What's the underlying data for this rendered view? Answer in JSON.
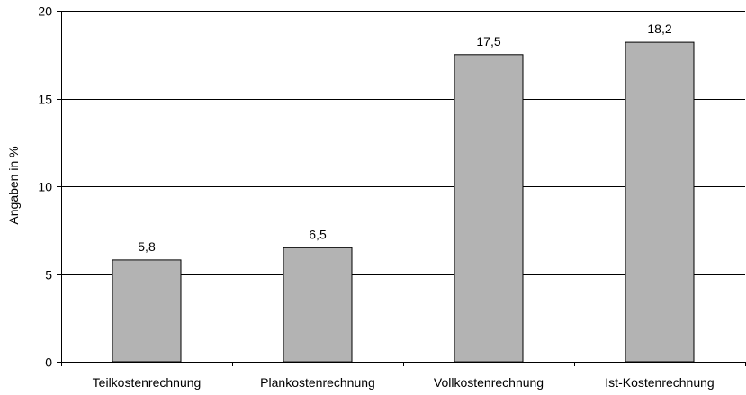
{
  "chart_data": {
    "type": "bar",
    "title": "",
    "xlabel": "",
    "ylabel": "Angaben in %",
    "categories": [
      "Teilkostenrechnung",
      "Plankostenrechnung",
      "Vollkostenrechnung",
      "Ist-Kostenrechnung"
    ],
    "values": [
      5.8,
      6.5,
      17.5,
      18.2
    ],
    "data_labels": [
      "5,8",
      "6,5",
      "17,5",
      "18,2"
    ],
    "yticks": [
      0,
      5,
      10,
      15,
      20
    ],
    "ytick_labels": [
      "0",
      "5",
      "10",
      "15",
      "20"
    ],
    "ylim": [
      0,
      20
    ],
    "grid": true,
    "legend": "none",
    "colors": {
      "bar_fill": "#b3b3b3",
      "bar_stroke": "#000000",
      "grid": "#000000",
      "axis": "#000000"
    }
  }
}
